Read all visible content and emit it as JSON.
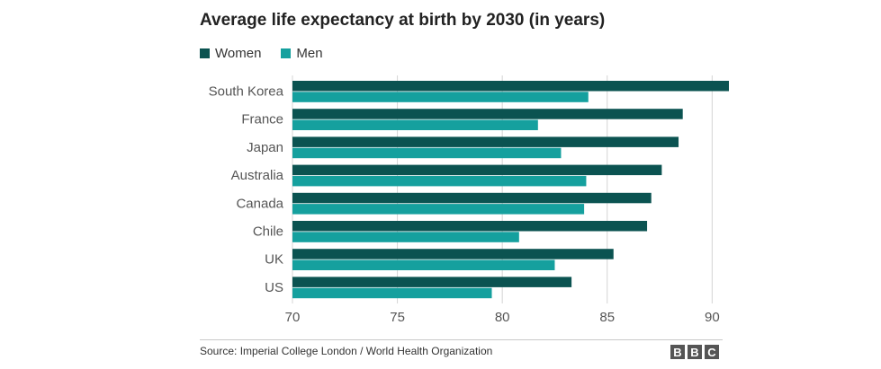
{
  "chart_data": {
    "type": "bar",
    "orientation": "horizontal",
    "title": "Average life expectancy at birth by 2030 (in years)",
    "categories": [
      "South Korea",
      "France",
      "Japan",
      "Australia",
      "Canada",
      "Chile",
      "UK",
      "US"
    ],
    "series": [
      {
        "name": "Women",
        "color": "#0b5351",
        "values": [
          90.8,
          88.6,
          88.4,
          87.6,
          87.1,
          86.9,
          85.3,
          83.3
        ]
      },
      {
        "name": "Men",
        "color": "#15a09e",
        "values": [
          84.1,
          81.7,
          82.8,
          84.0,
          83.9,
          80.8,
          82.5,
          79.5
        ]
      }
    ],
    "xlim": [
      70,
      90.5
    ],
    "xticks": [
      "70",
      "75",
      "80",
      "85",
      "90"
    ],
    "grid": true,
    "legend": "top-left"
  },
  "footer": {
    "source": "Source: Imperial College London / World Health Organization",
    "logo_letters": [
      "B",
      "B",
      "C"
    ]
  }
}
